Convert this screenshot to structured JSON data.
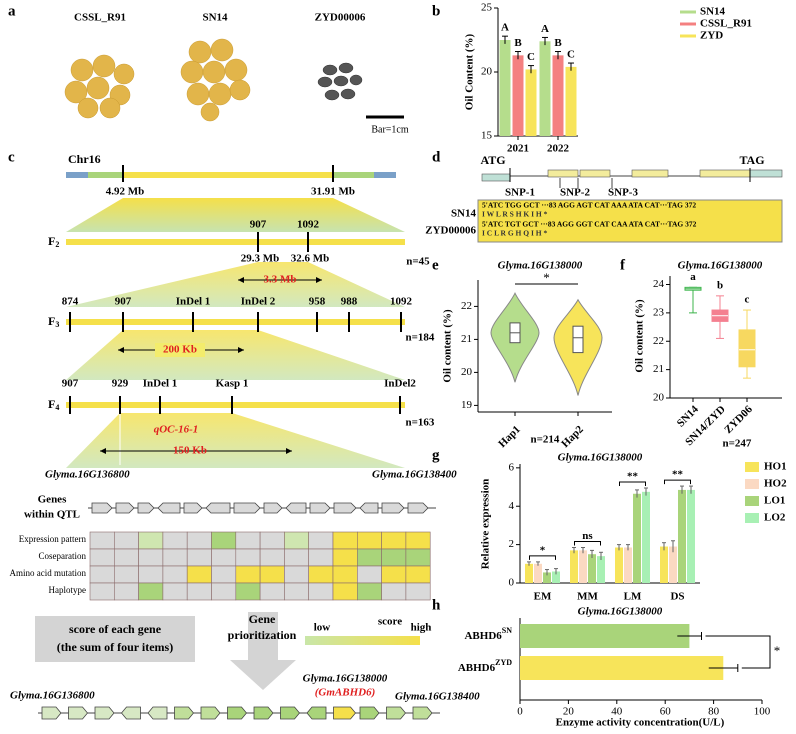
{
  "panel_labels": [
    "a",
    "b",
    "c",
    "d",
    "e",
    "f",
    "g",
    "h"
  ],
  "panel_a": {
    "samples": [
      "CSSL_R91",
      "SN14",
      "ZYD00006"
    ],
    "scale_bar": "Bar=1cm"
  },
  "panel_c": {
    "chromosome": "Chr16",
    "chr_positions": [
      "4.92 Mb",
      "31.91 Mb"
    ],
    "populations": [
      {
        "name": "F",
        "sub": "2",
        "n": "n=45"
      },
      {
        "name": "F",
        "sub": "3",
        "n": "n=184"
      },
      {
        "name": "F",
        "sub": "4",
        "n": "n=163"
      }
    ],
    "f2_markers": [
      "907",
      "1092"
    ],
    "f2_positions": [
      "29.3 Mb",
      "32.6 Mb"
    ],
    "f2_interval": "3.3 Mb",
    "f3_markers": [
      "874",
      "907",
      "InDel 1",
      "InDel 2",
      "958",
      "988",
      "1092"
    ],
    "f3_interval": "200 Kb",
    "f4_markers": [
      "907",
      "929",
      "InDel 1",
      "Kasp 1",
      "InDel2"
    ],
    "qtl": "qOC-16-1",
    "f4_interval": "150 Kb",
    "flank_genes": [
      "Glyma.16G136800",
      "Glyma.16G138400"
    ],
    "genes_label": [
      "Genes",
      "within QTL"
    ],
    "heatmap": {
      "rows": [
        "Expression pattern",
        "Coseparation",
        "Amino acid mutation",
        "Haplotype"
      ],
      "colors": [
        [
          "#d9d9d9",
          "#d9d9d9",
          "#cfe6b0",
          "#d9d9d9",
          "#d9d9d9",
          "#a9d47a",
          "#d9d9d9",
          "#d9d9d9",
          "#cfe6b0",
          "#d9d9d9",
          "#f5e04a",
          "#f5e04a",
          "#f5e04a",
          "#f5e04a"
        ],
        [
          "#d9d9d9",
          "#d9d9d9",
          "#d9d9d9",
          "#d9d9d9",
          "#d9d9d9",
          "#d9d9d9",
          "#d9d9d9",
          "#d9d9d9",
          "#d9d9d9",
          "#d9d9d9",
          "#f5e04a",
          "#a9d47a",
          "#a9d47a",
          "#a9d47a"
        ],
        [
          "#d9d9d9",
          "#d9d9d9",
          "#d9d9d9",
          "#d9d9d9",
          "#f5e04a",
          "#d9d9d9",
          "#f5e04a",
          "#f5e04a",
          "#d9d9d9",
          "#f5e04a",
          "#f5e04a",
          "#d9d9d9",
          "#f5e04a",
          "#f5e04a"
        ],
        [
          "#d9d9d9",
          "#d9d9d9",
          "#a9d47a",
          "#d9d9d9",
          "#d9d9d9",
          "#d9d9d9",
          "#a9d47a",
          "#d9d9d9",
          "#d9d9d9",
          "#d9d9d9",
          "#f5e04a",
          "#a9d47a",
          "#d9d9d9",
          "#d9d9d9"
        ]
      ]
    },
    "score_box": [
      "score of each gene",
      "(the sum of four items)"
    ],
    "prioritization": [
      "Gene",
      "prioritization"
    ],
    "colorbar": {
      "title": "score",
      "low": "low",
      "high": "high"
    },
    "candidate": "Glyma.16G138000",
    "candidate_alias": "(GmABHD6)",
    "bottom_flanks": [
      "Glyma.16G136800",
      "Glyma.16G138400"
    ]
  },
  "panel_d": {
    "start": "ATG",
    "stop": "TAG",
    "snps": [
      "SNP-1",
      "SNP-2",
      "SNP-3"
    ],
    "lines": [
      "SN14",
      "ZYD00006"
    ],
    "sequences": [
      "5'ATC TGG GCT ···83 AGG AGT CAT AAA ATA CAT···TAG 372",
      "I    W    L           R    S    H    K    I    H        *",
      "5'ATC TGT GCT ···83 AGG GGT CAT CAA ATA CAT···TAG 372",
      "I    C    L           R    G    H    Q    I    H        *"
    ]
  },
  "chart_data": [
    {
      "type": "bar",
      "ylabel": "Oil Content (%)",
      "categories": [
        "2021",
        "2022"
      ],
      "ylim": [
        15,
        25
      ],
      "yticks": [
        15,
        20,
        25
      ],
      "legend": "upper right",
      "series": [
        {
          "name": "SN14",
          "color": "#b5dd8c",
          "values": [
            22.5,
            22.4
          ],
          "errors": [
            0.3,
            0.3
          ],
          "letters": [
            "A",
            "A"
          ]
        },
        {
          "name": "CSSL_R91",
          "color": "#f48080",
          "values": [
            21.3,
            21.3
          ],
          "errors": [
            0.3,
            0.3
          ],
          "letters": [
            "B",
            "B"
          ]
        },
        {
          "name": "ZYD",
          "color": "#f7e45a",
          "values": [
            20.2,
            20.4
          ],
          "errors": [
            0.3,
            0.3
          ],
          "letters": [
            "C",
            "C"
          ]
        }
      ]
    },
    {
      "type": "violin",
      "title": "Glyma.16G138000",
      "ylabel": "Oil content (%)",
      "xlabel": "n=214",
      "categories": [
        "Hap1",
        "Hap2"
      ],
      "colors": [
        "#b5dd8c",
        "#f7e45a"
      ],
      "min": [
        19.7,
        19.3
      ],
      "q1": [
        20.9,
        20.6
      ],
      "median": [
        21.2,
        21.05
      ],
      "q3": [
        21.5,
        21.4
      ],
      "max": [
        22.4,
        22.2
      ],
      "ylim": [
        18.8,
        22.8
      ],
      "yticks": [
        19,
        20,
        21,
        22
      ],
      "significance": "*"
    },
    {
      "type": "box",
      "title": "Glyma.16G138000",
      "ylabel": "Oil content (%)",
      "xlabel": "n=247",
      "categories": [
        "SN14",
        "SN14/ZYD",
        "ZYD06"
      ],
      "colors": [
        "#3cb44b",
        "#f48090",
        "#f7d860"
      ],
      "min": [
        23.0,
        22.1,
        20.7
      ],
      "q1": [
        23.8,
        22.7,
        21.1
      ],
      "median": [
        23.85,
        22.9,
        21.7
      ],
      "q3": [
        23.9,
        23.1,
        22.4
      ],
      "max": [
        23.9,
        23.6,
        23.1
      ],
      "letters": [
        "a",
        "b",
        "c"
      ],
      "ylim": [
        20,
        24.3
      ],
      "yticks": [
        20,
        21,
        22,
        23,
        24
      ]
    },
    {
      "type": "grouped_bar",
      "title": "Glyma.16G138000",
      "ylabel": "Relative expression",
      "categories": [
        "EM",
        "MM",
        "LM",
        "DS"
      ],
      "ylim": [
        0,
        6.2
      ],
      "yticks": [
        0,
        2,
        4,
        6
      ],
      "significance": [
        "*",
        "ns",
        "**",
        "**"
      ],
      "series": [
        {
          "name": "HO1",
          "color": "#f7e45a",
          "values": [
            1.0,
            1.7,
            1.85,
            1.9
          ],
          "errors": [
            0.1,
            0.15,
            0.15,
            0.2
          ]
        },
        {
          "name": "HO2",
          "color": "#fbd9c2",
          "values": [
            1.0,
            1.7,
            1.85,
            1.9
          ],
          "errors": [
            0.1,
            0.15,
            0.15,
            0.3
          ]
        },
        {
          "name": "LO1",
          "color": "#a9d47a",
          "values": [
            0.55,
            1.5,
            4.65,
            4.85
          ],
          "errors": [
            0.15,
            0.2,
            0.2,
            0.2
          ]
        },
        {
          "name": "LO2",
          "color": "#a8f0b4",
          "values": [
            0.6,
            1.4,
            4.75,
            4.85
          ],
          "errors": [
            0.15,
            0.2,
            0.2,
            0.2
          ]
        }
      ]
    },
    {
      "type": "hbar",
      "title": "Glyma.16G138000",
      "xlabel": "Enzyme activity concentration(U/L)",
      "categories": [
        "ABHD6",
        "ABHD6"
      ],
      "category_superscripts": [
        "SN",
        "ZYD"
      ],
      "values": [
        70,
        84
      ],
      "errors": [
        5,
        6
      ],
      "colors": [
        "#a9d47a",
        "#f7e45a"
      ],
      "xlim": [
        0,
        100
      ],
      "xticks": [
        0,
        20,
        40,
        60,
        80,
        100
      ],
      "significance": "*"
    }
  ]
}
